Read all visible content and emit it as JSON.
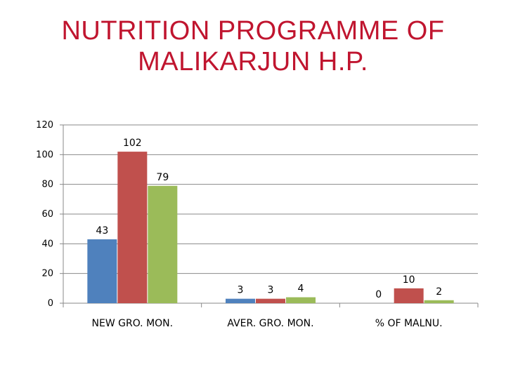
{
  "title": {
    "line1": "NUTRITION PROGRAMME OF",
    "line2": "MALIKARJUN H.P."
  },
  "chart_data": {
    "type": "bar",
    "title": "NUTRITION PROGRAMME OF MALIKARJUN H.P.",
    "categories": [
      "NEW GRO. MON.",
      "AVER. GRO. MON.",
      "% OF MALNU."
    ],
    "series": [
      {
        "color": "#4f81bd",
        "values": [
          43,
          3,
          0
        ]
      },
      {
        "color": "#c0504d",
        "values": [
          102,
          3,
          10
        ]
      },
      {
        "color": "#9bbb59",
        "values": [
          79,
          4,
          2
        ]
      }
    ],
    "ylim": [
      0,
      120
    ],
    "yticks": [
      0,
      20,
      40,
      60,
      80,
      100,
      120
    ],
    "grid": true,
    "legend": "none",
    "xlabel": "",
    "ylabel": ""
  }
}
